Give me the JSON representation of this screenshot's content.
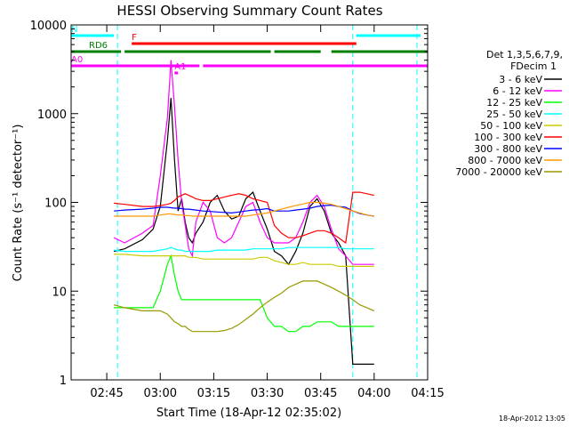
{
  "title": "HESSI Observing Summary Count Rates",
  "xlabel": "Start Time (18-Apr-12 02:35:02)",
  "ylabel": "Count Rate (s⁻¹ detector⁻¹)",
  "timestamp": "18-Apr-2012 13:05",
  "legend": {
    "header1": "Det 1,3,5,6,7,9,",
    "header2": "FDecim 1"
  },
  "colors": {
    "background": "#ffffff",
    "axes": "#000000",
    "night": "#00ffff",
    "flare": "#ff0000",
    "saa": "#ff00ff",
    "rad": "#008000"
  },
  "chart_data": {
    "type": "line",
    "yscale": "log",
    "xlim": [
      "02:35",
      "04:15"
    ],
    "ylim": [
      1,
      10000
    ],
    "x_ticks": [
      "02:45",
      "03:00",
      "03:15",
      "03:30",
      "03:45",
      "04:00",
      "04:15"
    ],
    "y_ticks": [
      "1",
      "10",
      "100",
      "1000",
      "10000"
    ],
    "x": [
      "02:47",
      "02:50",
      "02:55",
      "02:58",
      "03:00",
      "03:02",
      "03:03",
      "03:04",
      "03:05",
      "03:06",
      "03:07",
      "03:08",
      "03:09",
      "03:10",
      "03:12",
      "03:14",
      "03:16",
      "03:18",
      "03:20",
      "03:22",
      "03:24",
      "03:26",
      "03:28",
      "03:30",
      "03:32",
      "03:34",
      "03:36",
      "03:38",
      "03:40",
      "03:42",
      "03:44",
      "03:46",
      "03:48",
      "03:50",
      "03:52",
      "03:54",
      "03:56",
      "03:58",
      "04:00"
    ],
    "series": [
      {
        "name": "3 - 6 keV",
        "color": "#000000",
        "values": [
          28,
          30,
          38,
          50,
          90,
          500,
          1500,
          300,
          80,
          110,
          60,
          40,
          35,
          45,
          60,
          100,
          120,
          80,
          65,
          70,
          110,
          130,
          80,
          50,
          28,
          25,
          20,
          28,
          45,
          90,
          110,
          80,
          45,
          35,
          25,
          1.5,
          1.5,
          1.5,
          1.5
        ]
      },
      {
        "name": "6 - 12 keV",
        "color": "#ff00ff",
        "values": [
          40,
          35,
          45,
          55,
          200,
          900,
          4000,
          1200,
          300,
          100,
          55,
          30,
          25,
          60,
          100,
          80,
          40,
          35,
          40,
          60,
          90,
          100,
          60,
          40,
          35,
          35,
          35,
          40,
          60,
          100,
          120,
          90,
          50,
          30,
          25,
          20,
          20,
          20,
          20
        ]
      },
      {
        "name": "12 - 25 keV",
        "color": "#00ff00",
        "values": [
          6.5,
          6.5,
          6.5,
          6.5,
          10,
          20,
          25,
          15,
          10,
          8,
          8,
          8,
          8,
          8,
          8,
          8,
          8,
          8,
          8,
          8,
          8,
          8,
          8,
          5,
          4,
          4,
          3.5,
          3.5,
          4,
          4,
          4.5,
          4.5,
          4.5,
          4,
          4,
          4,
          4,
          4,
          4
        ]
      },
      {
        "name": "25 - 50 keV",
        "color": "#00ffff",
        "values": [
          29,
          28,
          28,
          28,
          29,
          30,
          31,
          30,
          29,
          29,
          28,
          28,
          28,
          28,
          28,
          28,
          29,
          29,
          29,
          29,
          29,
          30,
          30,
          30,
          30,
          30,
          31,
          31,
          31,
          31,
          31,
          31,
          31,
          31,
          30,
          30,
          30,
          30,
          30
        ]
      },
      {
        "name": "50 - 100 keV",
        "color": "#cccc00",
        "values": [
          26,
          26,
          25,
          25,
          25,
          25,
          25,
          25,
          25,
          25,
          25,
          24,
          24,
          24,
          23,
          23,
          23,
          23,
          23,
          23,
          23,
          23,
          24,
          24,
          22,
          21,
          20,
          20,
          21,
          20,
          20,
          20,
          20,
          19,
          19,
          19,
          19,
          19,
          19
        ]
      },
      {
        "name": "100 - 300 keV",
        "color": "#ff0000",
        "values": [
          98,
          95,
          90,
          90,
          92,
          95,
          98,
          105,
          115,
          120,
          125,
          120,
          115,
          110,
          105,
          105,
          110,
          115,
          120,
          125,
          120,
          110,
          105,
          100,
          55,
          45,
          40,
          40,
          42,
          45,
          48,
          48,
          45,
          40,
          35,
          130,
          130,
          125,
          120
        ]
      },
      {
        "name": "300 - 800 keV",
        "color": "#0000ff",
        "values": [
          80,
          82,
          84,
          86,
          88,
          88,
          87,
          86,
          86,
          85,
          84,
          84,
          83,
          82,
          80,
          79,
          78,
          77,
          76,
          78,
          80,
          82,
          83,
          85,
          80,
          80,
          80,
          82,
          84,
          86,
          90,
          92,
          93,
          90,
          88,
          80,
          75,
          72,
          70
        ]
      },
      {
        "name": "800 - 7000 keV",
        "color": "#ff9900",
        "values": [
          70,
          70,
          70,
          70,
          72,
          74,
          74,
          73,
          72,
          72,
          71,
          71,
          70,
          70,
          70,
          70,
          70,
          70,
          70,
          70,
          70,
          72,
          74,
          76,
          80,
          84,
          88,
          92,
          96,
          100,
          100,
          98,
          95,
          90,
          85,
          80,
          76,
          72,
          70
        ]
      },
      {
        "name": "7000 - 20000 keV",
        "color": "#999900",
        "values": [
          7,
          6.5,
          6,
          6,
          6,
          5.5,
          5,
          4.5,
          4.3,
          4,
          4,
          3.7,
          3.5,
          3.5,
          3.5,
          3.5,
          3.5,
          3.6,
          3.8,
          4.2,
          4.8,
          5.5,
          6.5,
          7.5,
          8.5,
          9.5,
          11,
          12,
          13,
          13,
          13,
          12,
          11,
          10,
          9,
          8,
          7,
          6.5,
          6
        ]
      }
    ],
    "attenuator_flags": [
      {
        "label": "N",
        "color": "#00ffff",
        "segments": [
          [
            "02:35",
            "02:47"
          ],
          [
            "03:55",
            "04:13"
          ]
        ]
      },
      {
        "label": "F",
        "color": "#ff0000",
        "segments": [
          [
            "02:52",
            "03:55"
          ]
        ]
      },
      {
        "label": "RD6",
        "color": "#008000",
        "segments": [
          [
            "02:35",
            "02:49"
          ],
          [
            "02:50",
            "03:31"
          ],
          [
            "03:32",
            "03:45"
          ],
          [
            "03:48",
            "04:15"
          ]
        ]
      },
      {
        "label": "A1",
        "color": "#ff00ff",
        "segments": [
          [
            "03:04",
            "03:05"
          ]
        ]
      },
      {
        "label": "A0",
        "color": "#ff00ff",
        "segments": [
          [
            "02:35",
            "03:11"
          ],
          [
            "03:12",
            "04:15"
          ]
        ]
      }
    ],
    "night_markers": [
      "02:48",
      "03:54",
      "04:12"
    ]
  }
}
